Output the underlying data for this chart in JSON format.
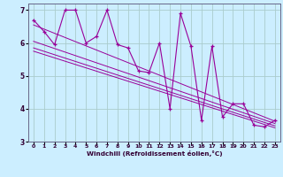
{
  "xlabel": "Windchill (Refroidissement éolien,°C)",
  "line_color": "#990099",
  "bg_color": "#cceeff",
  "grid_color": "#aacccc",
  "xlim": [
    -0.5,
    23.5
  ],
  "ylim": [
    3,
    7.2
  ],
  "xticks": [
    0,
    1,
    2,
    3,
    4,
    5,
    6,
    7,
    8,
    9,
    10,
    11,
    12,
    13,
    14,
    15,
    16,
    17,
    18,
    19,
    20,
    21,
    22,
    23
  ],
  "yticks": [
    3,
    4,
    5,
    6,
    7
  ],
  "main_x": [
    0,
    1,
    2,
    3,
    4,
    5,
    6,
    7,
    8,
    9,
    10,
    11,
    12,
    13,
    14,
    15,
    16,
    17,
    18,
    19,
    20,
    21,
    22,
    23
  ],
  "main_y": [
    6.7,
    6.35,
    5.95,
    7.0,
    7.0,
    6.0,
    6.2,
    7.0,
    5.95,
    5.85,
    5.15,
    5.1,
    6.0,
    4.0,
    6.9,
    5.9,
    3.65,
    5.9,
    3.75,
    4.15,
    4.15,
    3.5,
    3.45,
    3.65
  ],
  "reg_lines": [
    {
      "x": [
        0,
        23
      ],
      "y": [
        6.55,
        3.62
      ]
    },
    {
      "x": [
        0,
        23
      ],
      "y": [
        6.05,
        3.55
      ]
    },
    {
      "x": [
        0,
        23
      ],
      "y": [
        5.85,
        3.48
      ]
    },
    {
      "x": [
        0,
        23
      ],
      "y": [
        5.75,
        3.42
      ]
    }
  ]
}
